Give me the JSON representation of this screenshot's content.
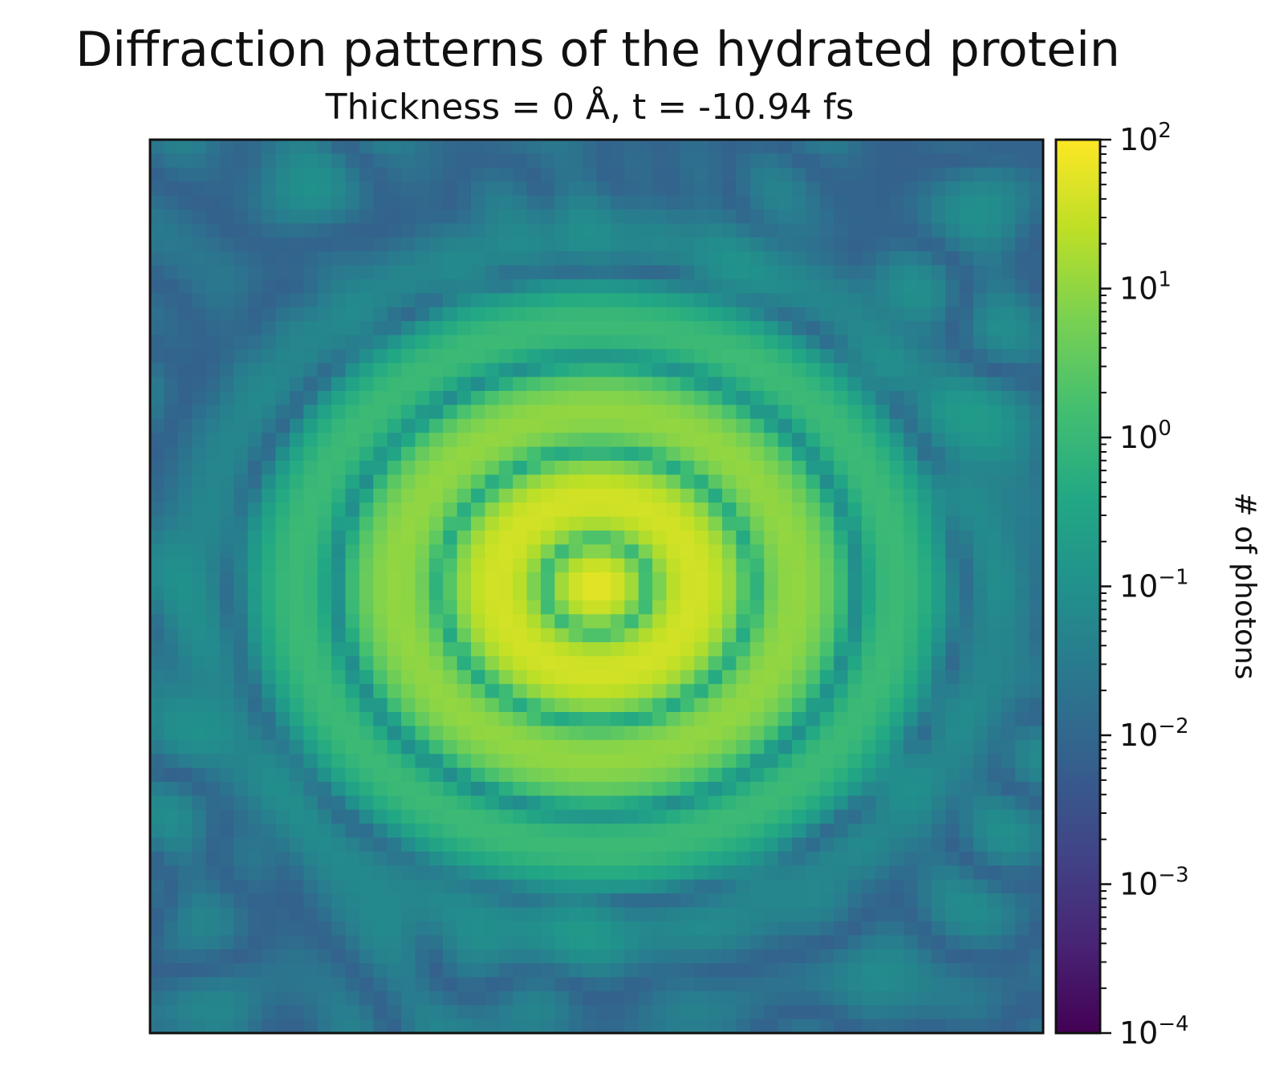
{
  "chart_data": {
    "type": "heatmap",
    "title": "Diffraction patterns of the hydrated protein",
    "subtitle": "Thickness = 0 Å, t = -10.94 fs",
    "colorbar": {
      "label": "# of photons",
      "scale": "log",
      "range": [
        0.0001,
        100
      ],
      "colormap": "viridis",
      "ticks": [
        {
          "value": 100,
          "base": "10",
          "exp": "2"
        },
        {
          "value": 10,
          "base": "10",
          "exp": "1"
        },
        {
          "value": 1,
          "base": "10",
          "exp": "0"
        },
        {
          "value": 0.1,
          "base": "10",
          "exp": "−1"
        },
        {
          "value": 0.01,
          "base": "10",
          "exp": "−2"
        },
        {
          "value": 0.001,
          "base": "10",
          "exp": "−3"
        },
        {
          "value": 0.0001,
          "base": "10",
          "exp": "−4"
        }
      ]
    },
    "grid": false,
    "axes_ticks": false,
    "pattern": {
      "resolution": [
        64,
        64
      ],
      "center_peak": 60,
      "background_level": 0.05,
      "minimum_level": 0.0001
    }
  }
}
